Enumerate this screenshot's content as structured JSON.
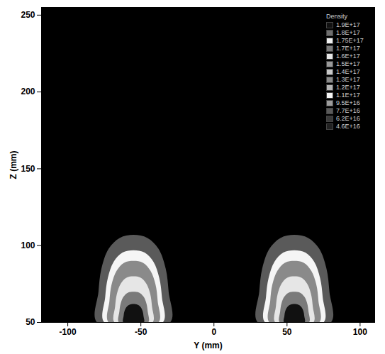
{
  "chart_data": {
    "type": "contour",
    "xlabel": "Y (mm)",
    "ylabel": "Z (mm)",
    "xlim": [
      -118,
      110
    ],
    "ylim": [
      50,
      255
    ],
    "xticks": [
      -100,
      -50,
      0,
      50,
      100
    ],
    "yticks": [
      50,
      100,
      150,
      200,
      250
    ],
    "colorbar": {
      "title": "Density",
      "ticks": [
        {
          "value": 1.9e+17,
          "label": "1.9E+17"
        },
        {
          "value": 1.8e+17,
          "label": "1.8E+17"
        },
        {
          "value": 1.75e+17,
          "label": "1.75E+17"
        },
        {
          "value": 1.7e+17,
          "label": "1.7E+17"
        },
        {
          "value": 1.6e+17,
          "label": "1.6E+17"
        },
        {
          "value": 1.5e+17,
          "label": "1.5E+17"
        },
        {
          "value": 1.4e+17,
          "label": "1.4E+17"
        },
        {
          "value": 1.3e+17,
          "label": "1.3E+17"
        },
        {
          "value": 1.2e+17,
          "label": "1.2E+17"
        },
        {
          "value": 1.1e+17,
          "label": "1.1E+17"
        },
        {
          "value": 9.5e+16,
          "label": "9.5E+16"
        },
        {
          "value": 7.7e+16,
          "label": "7.7E+16"
        },
        {
          "value": 6.2e+16,
          "label": "6.2E+16"
        },
        {
          "value": 4.6e+16,
          "label": "4.6E+16"
        }
      ],
      "colors": [
        "#111111",
        "#6e6e6e",
        "#f0f0f0",
        "#7a7a7a",
        "#e6e6e6",
        "#9a9a9a",
        "#c8c8c8",
        "#8a8a8a",
        "#b4b4b4",
        "#f5f5f5",
        "#9c9c9c",
        "#5a5a5a",
        "#3a3a3a",
        "#222222"
      ]
    },
    "contours": [
      {
        "value": 7.7e+16,
        "outline": [
          [
            -80,
            50
          ],
          [
            -79,
            70
          ],
          [
            -77,
            85
          ],
          [
            -72,
            98
          ],
          [
            -64.5,
            105
          ],
          [
            -55,
            107
          ],
          [
            -45.5,
            105
          ],
          [
            -38,
            98
          ],
          [
            -33,
            85
          ],
          [
            -31,
            70
          ],
          [
            -30,
            50
          ]
        ]
      },
      {
        "value": 1.1e+17,
        "outline": [
          [
            -75,
            50
          ],
          [
            -74.4,
            66.5
          ],
          [
            -72.6,
            79
          ],
          [
            -68.6,
            89.5
          ],
          [
            -62.6,
            95.5
          ],
          [
            -55,
            97
          ],
          [
            -47.4,
            95.5
          ],
          [
            -41.4,
            89.5
          ],
          [
            -37.4,
            79
          ],
          [
            -35.6,
            66.5
          ],
          [
            -35,
            50
          ]
        ]
      },
      {
        "value": 1.3e+17,
        "outline": [
          [
            -72,
            50
          ],
          [
            -71.5,
            64
          ],
          [
            -70,
            74.8
          ],
          [
            -66.6,
            83.6
          ],
          [
            -61.5,
            88.8
          ],
          [
            -55,
            90
          ],
          [
            -48.5,
            88.8
          ],
          [
            -43.4,
            83.6
          ],
          [
            -40,
            74.8
          ],
          [
            -38.5,
            64
          ],
          [
            -38,
            50
          ]
        ]
      },
      {
        "value": 1.6e+17,
        "outline": [
          [
            -68,
            50
          ],
          [
            -67.6,
            60.5
          ],
          [
            -66.4,
            68.6
          ],
          [
            -63.8,
            75.2
          ],
          [
            -59.9,
            79.1
          ],
          [
            -55,
            80
          ],
          [
            -50.1,
            79.1
          ],
          [
            -46.2,
            75.2
          ],
          [
            -43.6,
            68.6
          ],
          [
            -42.4,
            60.5
          ],
          [
            -42,
            50
          ]
        ]
      },
      {
        "value": 1.7e+17,
        "outline": [
          [
            -65,
            50
          ],
          [
            -64.7,
            57
          ],
          [
            -63.8,
            62.4
          ],
          [
            -61.8,
            66.8
          ],
          [
            -58.8,
            69.4
          ],
          [
            -55,
            70
          ],
          [
            -51.2,
            69.4
          ],
          [
            -48.2,
            66.8
          ],
          [
            -46.2,
            62.4
          ],
          [
            -45.3,
            57
          ],
          [
            -45,
            50
          ]
        ]
      },
      {
        "value": 1.9e+17,
        "outline": [
          [
            -62,
            50
          ],
          [
            -61.8,
            54.2
          ],
          [
            -61.2,
            57.4
          ],
          [
            -59.8,
            60.1
          ],
          [
            -57.7,
            61.6
          ],
          [
            -55,
            62
          ],
          [
            -52.3,
            61.6
          ],
          [
            -50.2,
            60.1
          ],
          [
            -48.8,
            57.4
          ],
          [
            -48.2,
            54.2
          ],
          [
            -48,
            50
          ]
        ]
      },
      {
        "value": 7.7e+16,
        "outline": [
          [
            30,
            50
          ],
          [
            31,
            70
          ],
          [
            33,
            85
          ],
          [
            38,
            98
          ],
          [
            45.5,
            105
          ],
          [
            55,
            107
          ],
          [
            64.5,
            105
          ],
          [
            72,
            98
          ],
          [
            77,
            85
          ],
          [
            79,
            70
          ],
          [
            80,
            50
          ]
        ]
      },
      {
        "value": 1.1e+17,
        "outline": [
          [
            35,
            50
          ],
          [
            35.6,
            66.5
          ],
          [
            37.4,
            79
          ],
          [
            41.4,
            89.5
          ],
          [
            47.4,
            95.5
          ],
          [
            55,
            97
          ],
          [
            62.6,
            95.5
          ],
          [
            68.6,
            89.5
          ],
          [
            72.6,
            79
          ],
          [
            74.4,
            66.5
          ],
          [
            75,
            50
          ]
        ]
      },
      {
        "value": 1.3e+17,
        "outline": [
          [
            38,
            50
          ],
          [
            38.5,
            64
          ],
          [
            40,
            74.8
          ],
          [
            43.4,
            83.6
          ],
          [
            48.5,
            88.8
          ],
          [
            55,
            90
          ],
          [
            61.5,
            88.8
          ],
          [
            66.6,
            83.6
          ],
          [
            70,
            74.8
          ],
          [
            71.5,
            64
          ],
          [
            72,
            50
          ]
        ]
      },
      {
        "value": 1.6e+17,
        "outline": [
          [
            42,
            50
          ],
          [
            42.4,
            60.5
          ],
          [
            43.6,
            68.6
          ],
          [
            46.2,
            75.2
          ],
          [
            50.1,
            79.1
          ],
          [
            55,
            80
          ],
          [
            59.9,
            79.1
          ],
          [
            63.8,
            75.2
          ],
          [
            66.4,
            68.6
          ],
          [
            67.6,
            60.5
          ],
          [
            68,
            50
          ]
        ]
      },
      {
        "value": 1.7e+17,
        "outline": [
          [
            45,
            50
          ],
          [
            45.3,
            57
          ],
          [
            46.2,
            62.4
          ],
          [
            48.2,
            66.8
          ],
          [
            51.2,
            69.4
          ],
          [
            55,
            70
          ],
          [
            58.8,
            69.4
          ],
          [
            61.8,
            66.8
          ],
          [
            63.8,
            62.4
          ],
          [
            64.7,
            57
          ],
          [
            65,
            50
          ]
        ]
      },
      {
        "value": 1.9e+17,
        "outline": [
          [
            48,
            50
          ],
          [
            48.2,
            54.2
          ],
          [
            48.8,
            57.4
          ],
          [
            50.2,
            60.1
          ],
          [
            52.3,
            61.6
          ],
          [
            55,
            62
          ],
          [
            57.7,
            61.6
          ],
          [
            59.8,
            60.1
          ],
          [
            61.2,
            57.4
          ],
          [
            61.8,
            54.2
          ],
          [
            62,
            50
          ]
        ]
      }
    ]
  }
}
